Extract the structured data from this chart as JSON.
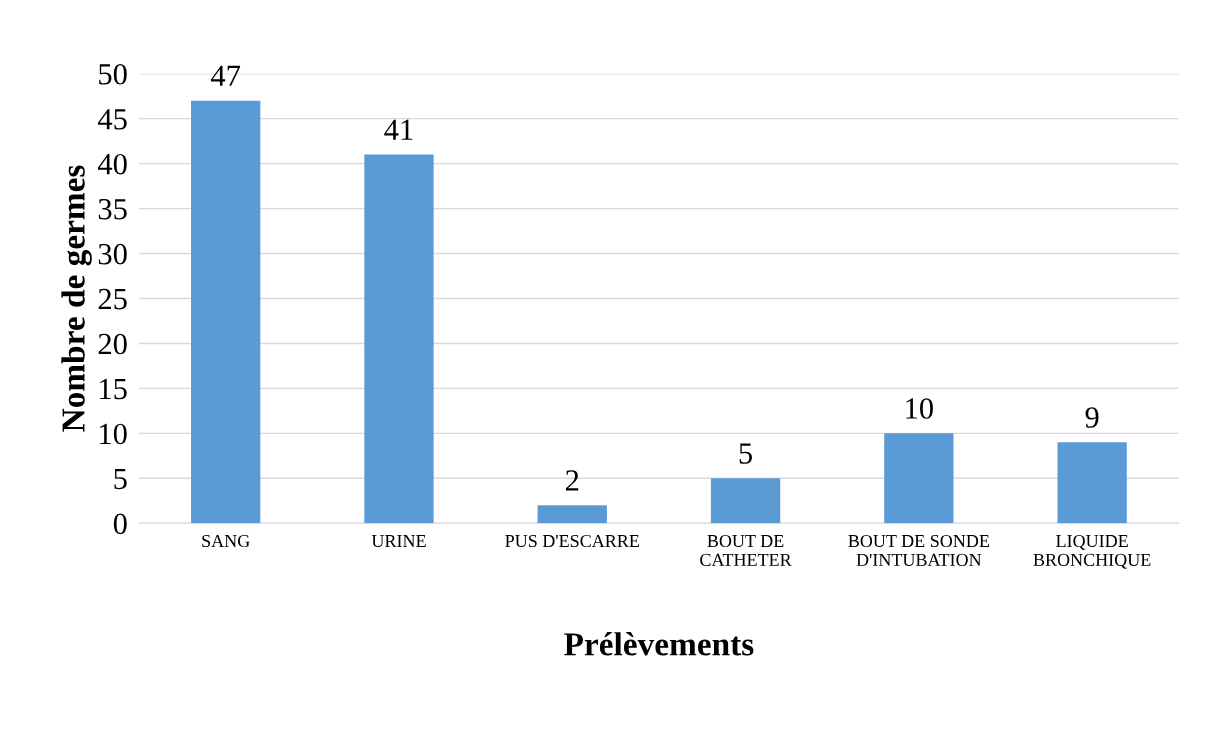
{
  "chart_data": {
    "type": "bar",
    "xlabel": "Prélèvements",
    "ylabel": "Nombre de germes",
    "categories": [
      "SANG",
      "URINE",
      "PUS D'ESCARRE",
      "BOUT DE\nCATHETER",
      "BOUT DE SONDE\nD'INTUBATION",
      "LIQUIDE\nBRONCHIQUE"
    ],
    "values": [
      47,
      41,
      2,
      5,
      10,
      9
    ],
    "color": "#5b9bd5",
    "ylim": [
      0,
      50
    ],
    "yticks": [
      0,
      5,
      10,
      15,
      20,
      25,
      30,
      35,
      40,
      45,
      50
    ],
    "grid": "y",
    "data_labels": true,
    "legend": false
  }
}
